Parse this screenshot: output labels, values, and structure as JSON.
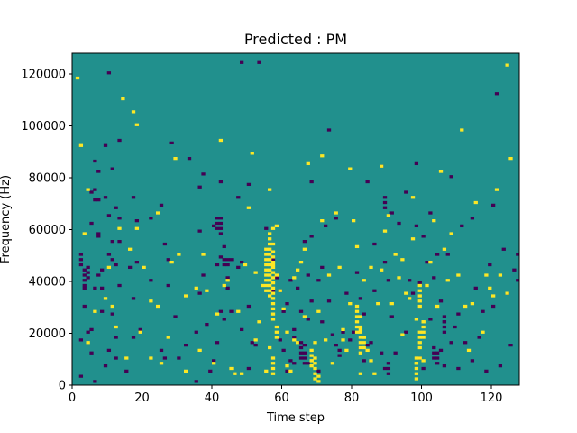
{
  "chart_data": {
    "type": "heatmap",
    "title": "Predicted : PM",
    "xlabel": "Time step",
    "ylabel": "Frequency (Hz)",
    "xlim": [
      0,
      128
    ],
    "ylim": [
      0,
      128000
    ],
    "xticks": [
      0,
      20,
      40,
      60,
      80,
      100,
      120
    ],
    "yticks": [
      0,
      20000,
      40000,
      60000,
      80000,
      100000,
      120000
    ],
    "xtick_labels": [
      "0",
      "20",
      "40",
      "60",
      "80",
      "100",
      "120"
    ],
    "ytick_labels": [
      "0",
      "20000",
      "40000",
      "60000",
      "80000",
      "100000",
      "120000"
    ],
    "grid": false,
    "colormap": "viridis",
    "cell_values": {
      "low": -1,
      "mid": 0,
      "high": 1
    },
    "colors": {
      "background": "#21908d",
      "low": "#440154",
      "high": "#fde725"
    },
    "grid_size": [
      128,
      128
    ],
    "cells_low": [
      [
        2,
        3
      ],
      [
        2,
        17
      ],
      [
        3,
        30
      ],
      [
        3,
        37
      ],
      [
        4,
        20
      ],
      [
        4,
        41
      ],
      [
        4,
        43
      ],
      [
        4,
        45
      ],
      [
        5,
        12
      ],
      [
        5,
        21
      ],
      [
        5,
        62
      ],
      [
        5,
        74
      ],
      [
        6,
        1
      ],
      [
        6,
        37
      ],
      [
        6,
        71
      ],
      [
        6,
        75
      ],
      [
        6,
        86
      ],
      [
        7,
        42
      ],
      [
        7,
        57
      ],
      [
        7,
        58
      ],
      [
        7,
        71
      ],
      [
        7,
        82
      ],
      [
        8,
        28
      ],
      [
        8,
        37
      ],
      [
        8,
        44
      ],
      [
        9,
        7
      ],
      [
        9,
        72
      ],
      [
        9,
        92
      ],
      [
        10,
        13
      ],
      [
        10,
        50
      ],
      [
        10,
        65
      ],
      [
        10,
        120
      ],
      [
        11,
        27
      ],
      [
        11,
        48
      ],
      [
        11,
        55
      ],
      [
        11,
        83
      ],
      [
        12,
        10
      ],
      [
        12,
        18
      ],
      [
        12,
        46
      ],
      [
        12,
        68
      ],
      [
        13,
        38
      ],
      [
        13,
        55
      ],
      [
        13,
        64
      ],
      [
        13,
        94
      ],
      [
        15,
        5
      ],
      [
        16,
        45
      ],
      [
        17,
        18
      ],
      [
        17,
        33
      ],
      [
        17,
        72
      ],
      [
        18,
        47
      ],
      [
        18,
        63
      ],
      [
        19,
        21
      ],
      [
        22,
        40
      ],
      [
        22,
        64
      ],
      [
        25,
        13
      ],
      [
        25,
        69
      ],
      [
        26,
        10
      ],
      [
        26,
        54
      ],
      [
        27,
        38
      ],
      [
        27,
        48
      ],
      [
        28,
        93
      ],
      [
        29,
        26
      ],
      [
        30,
        10
      ],
      [
        32,
        15
      ],
      [
        33,
        87
      ],
      [
        35,
        1
      ],
      [
        35,
        20
      ],
      [
        36,
        35
      ],
      [
        36,
        59
      ],
      [
        36,
        76
      ],
      [
        37,
        42
      ],
      [
        37,
        81
      ],
      [
        38,
        23
      ],
      [
        39,
        5
      ],
      [
        40,
        9
      ],
      [
        40,
        61
      ],
      [
        41,
        16
      ],
      [
        41,
        46
      ],
      [
        42,
        28
      ],
      [
        42,
        49
      ],
      [
        42,
        78
      ],
      [
        43,
        25
      ],
      [
        43,
        53
      ],
      [
        44,
        37
      ],
      [
        44,
        41
      ],
      [
        45,
        28
      ],
      [
        45,
        48
      ],
      [
        47,
        45
      ],
      [
        47,
        72
      ],
      [
        48,
        21
      ],
      [
        48,
        47
      ],
      [
        48,
        124
      ],
      [
        50,
        6
      ],
      [
        50,
        30
      ],
      [
        50,
        77
      ],
      [
        51,
        16
      ],
      [
        52,
        15
      ],
      [
        53,
        124
      ],
      [
        55,
        60
      ],
      [
        57,
        36
      ],
      [
        57,
        48
      ],
      [
        58,
        41
      ],
      [
        59,
        17
      ],
      [
        59,
        36
      ],
      [
        60,
        13
      ],
      [
        60,
        28
      ],
      [
        61,
        5
      ],
      [
        61,
        31
      ],
      [
        62,
        9
      ],
      [
        62,
        40
      ],
      [
        63,
        8
      ],
      [
        63,
        18
      ],
      [
        63,
        21
      ],
      [
        64,
        37
      ],
      [
        65,
        28
      ],
      [
        66,
        15
      ],
      [
        66,
        55
      ],
      [
        67,
        8
      ],
      [
        67,
        25
      ],
      [
        67,
        42
      ],
      [
        68,
        32
      ],
      [
        68,
        57
      ],
      [
        68,
        78
      ],
      [
        70,
        5
      ],
      [
        70,
        40
      ],
      [
        71,
        24
      ],
      [
        71,
        45
      ],
      [
        72,
        61
      ],
      [
        73,
        32
      ],
      [
        73,
        98
      ],
      [
        74,
        19
      ],
      [
        75,
        15
      ],
      [
        75,
        64
      ],
      [
        76,
        11
      ],
      [
        76,
        13
      ],
      [
        77,
        20
      ],
      [
        78,
        35
      ],
      [
        79,
        17
      ],
      [
        80,
        20
      ],
      [
        81,
        43
      ],
      [
        82,
        14
      ],
      [
        82,
        33
      ],
      [
        83,
        9
      ],
      [
        83,
        27
      ],
      [
        84,
        15
      ],
      [
        84,
        78
      ],
      [
        85,
        16
      ],
      [
        86,
        36
      ],
      [
        86,
        54
      ],
      [
        88,
        12
      ],
      [
        88,
        84
      ],
      [
        89,
        6
      ],
      [
        89,
        47
      ],
      [
        90,
        40
      ],
      [
        91,
        26
      ],
      [
        91,
        66
      ],
      [
        92,
        12
      ],
      [
        93,
        62
      ],
      [
        95,
        20
      ],
      [
        95,
        74
      ],
      [
        96,
        40
      ],
      [
        97,
        35
      ],
      [
        98,
        61
      ],
      [
        98,
        85
      ],
      [
        99,
        10
      ],
      [
        99,
        39
      ],
      [
        100,
        6
      ],
      [
        100,
        57
      ],
      [
        101,
        47
      ],
      [
        102,
        25
      ],
      [
        102,
        66
      ],
      [
        103,
        41
      ],
      [
        104,
        50
      ],
      [
        105,
        13
      ],
      [
        105,
        32
      ],
      [
        106,
        7
      ],
      [
        106,
        24
      ],
      [
        107,
        50
      ],
      [
        108,
        16
      ],
      [
        108,
        80
      ],
      [
        109,
        22
      ],
      [
        110,
        6
      ],
      [
        110,
        27
      ],
      [
        111,
        61
      ],
      [
        112,
        16
      ],
      [
        114,
        9
      ],
      [
        114,
        64
      ],
      [
        115,
        37
      ],
      [
        116,
        18
      ],
      [
        117,
        28
      ],
      [
        118,
        5
      ],
      [
        119,
        46
      ],
      [
        120,
        30
      ],
      [
        120,
        69
      ],
      [
        121,
        112
      ],
      [
        122,
        7
      ],
      [
        123,
        52
      ],
      [
        124,
        35
      ],
      [
        125,
        15
      ],
      [
        126,
        44
      ],
      [
        127,
        40
      ],
      [
        127,
        50
      ]
    ],
    "cells_high": [
      [
        1,
        118
      ],
      [
        2,
        92
      ],
      [
        3,
        58
      ],
      [
        4,
        16
      ],
      [
        4,
        75
      ],
      [
        6,
        28
      ],
      [
        9,
        33
      ],
      [
        10,
        45
      ],
      [
        11,
        30
      ],
      [
        12,
        22
      ],
      [
        13,
        60
      ],
      [
        14,
        110
      ],
      [
        15,
        10
      ],
      [
        16,
        52
      ],
      [
        17,
        105
      ],
      [
        18,
        100
      ],
      [
        18,
        60
      ],
      [
        19,
        20
      ],
      [
        20,
        45
      ],
      [
        22,
        32
      ],
      [
        22,
        10
      ],
      [
        24,
        30
      ],
      [
        24,
        66
      ],
      [
        25,
        8
      ],
      [
        27,
        18
      ],
      [
        28,
        47
      ],
      [
        29,
        87
      ],
      [
        30,
        50
      ],
      [
        32,
        34
      ],
      [
        32,
        5
      ],
      [
        35,
        37
      ],
      [
        36,
        13
      ],
      [
        37,
        50
      ],
      [
        38,
        36
      ],
      [
        40,
        8
      ],
      [
        41,
        27
      ],
      [
        42,
        94
      ],
      [
        43,
        38
      ],
      [
        44,
        40
      ],
      [
        45,
        6
      ],
      [
        46,
        4
      ],
      [
        47,
        28
      ],
      [
        48,
        4
      ],
      [
        49,
        46
      ],
      [
        50,
        68
      ],
      [
        51,
        89
      ],
      [
        52,
        17
      ],
      [
        52,
        43
      ],
      [
        53,
        24
      ],
      [
        54,
        38
      ],
      [
        55,
        5
      ],
      [
        56,
        14
      ],
      [
        56,
        75
      ],
      [
        57,
        46
      ],
      [
        57,
        54
      ],
      [
        57,
        60
      ],
      [
        58,
        42
      ],
      [
        58,
        61
      ],
      [
        59,
        36
      ],
      [
        60,
        29
      ],
      [
        61,
        7
      ],
      [
        61,
        20
      ],
      [
        62,
        5
      ],
      [
        63,
        41
      ],
      [
        63,
        17
      ],
      [
        64,
        44
      ],
      [
        64,
        16
      ],
      [
        65,
        47
      ],
      [
        66,
        26
      ],
      [
        66,
        52
      ],
      [
        67,
        85
      ],
      [
        68,
        9
      ],
      [
        69,
        16
      ],
      [
        70,
        28
      ],
      [
        71,
        63
      ],
      [
        71,
        88
      ],
      [
        72,
        17
      ],
      [
        73,
        42
      ],
      [
        74,
        8
      ],
      [
        75,
        66
      ],
      [
        76,
        45
      ],
      [
        77,
        17
      ],
      [
        77,
        21
      ],
      [
        78,
        13
      ],
      [
        79,
        31
      ],
      [
        79,
        83
      ],
      [
        80,
        63
      ],
      [
        81,
        53
      ],
      [
        82,
        26
      ],
      [
        82,
        21
      ],
      [
        82,
        4
      ],
      [
        83,
        18
      ],
      [
        83,
        40
      ],
      [
        84,
        13
      ],
      [
        85,
        9
      ],
      [
        85,
        45
      ],
      [
        86,
        4
      ],
      [
        87,
        31
      ],
      [
        88,
        44
      ],
      [
        88,
        84
      ],
      [
        89,
        59
      ],
      [
        90,
        65
      ],
      [
        91,
        31
      ],
      [
        92,
        50
      ],
      [
        93,
        41
      ],
      [
        94,
        19
      ],
      [
        94,
        48
      ],
      [
        95,
        35
      ],
      [
        96,
        33
      ],
      [
        97,
        72
      ],
      [
        97,
        56
      ],
      [
        98,
        25
      ],
      [
        98,
        8
      ],
      [
        99,
        10
      ],
      [
        100,
        24
      ],
      [
        100,
        9
      ],
      [
        101,
        38
      ],
      [
        102,
        47
      ],
      [
        103,
        63
      ],
      [
        104,
        30
      ],
      [
        105,
        82
      ],
      [
        106,
        52
      ],
      [
        107,
        40
      ],
      [
        108,
        58
      ],
      [
        110,
        42
      ],
      [
        111,
        98
      ],
      [
        112,
        30
      ],
      [
        113,
        13
      ],
      [
        114,
        31
      ],
      [
        115,
        70
      ],
      [
        117,
        20
      ],
      [
        118,
        42
      ],
      [
        119,
        37
      ],
      [
        120,
        34
      ],
      [
        121,
        75
      ],
      [
        122,
        42
      ],
      [
        124,
        123
      ],
      [
        124,
        35
      ],
      [
        125,
        87
      ]
    ],
    "columns_high": [
      [
        55,
        36,
        52
      ],
      [
        56,
        34,
        59
      ],
      [
        57,
        25,
        51
      ],
      [
        58,
        18,
        22
      ],
      [
        57,
        4,
        10
      ],
      [
        70,
        1,
        3
      ],
      [
        69,
        2,
        10
      ],
      [
        68,
        7,
        13
      ],
      [
        81,
        20,
        30
      ],
      [
        82,
        12,
        22
      ],
      [
        83,
        14,
        18
      ],
      [
        98,
        2,
        10
      ],
      [
        99,
        14,
        20
      ],
      [
        100,
        18,
        25
      ],
      [
        99,
        30,
        38
      ]
    ],
    "columns_low": [
      [
        43,
        46,
        49
      ],
      [
        44,
        46,
        49
      ],
      [
        41,
        60,
        64
      ],
      [
        42,
        58,
        64
      ],
      [
        66,
        8,
        13
      ],
      [
        65,
        10,
        16
      ],
      [
        103,
        10,
        14
      ],
      [
        104,
        8,
        12
      ],
      [
        106,
        20,
        26
      ],
      [
        89,
        68,
        72
      ],
      [
        90,
        4,
        8
      ],
      [
        2,
        46,
        50
      ],
      [
        3,
        38,
        44
      ]
    ]
  }
}
